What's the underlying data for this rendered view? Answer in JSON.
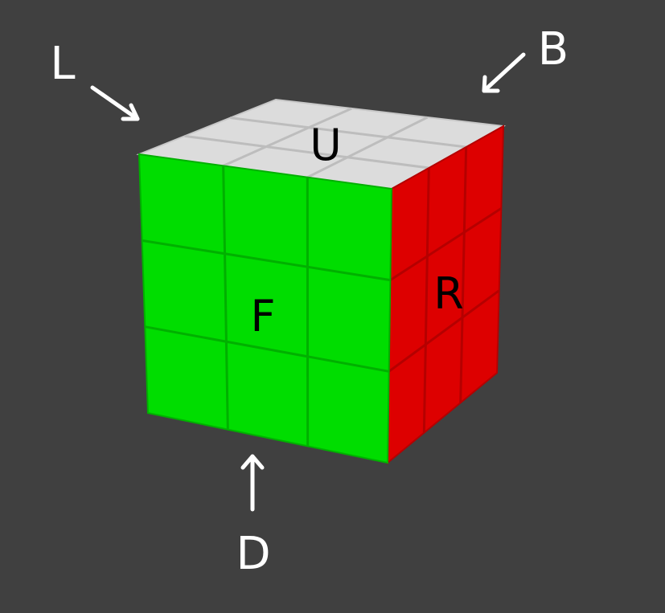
{
  "colors": {
    "background": "#404040",
    "front": "#00dd00",
    "front_grid": "#00b000",
    "right": "#dd0000",
    "right_grid": "#b50000",
    "up": "#dcdcdc",
    "up_grid": "#bdbdbd",
    "label_dark": "#000000",
    "label_light": "#ffffff"
  },
  "faces": {
    "front": "F",
    "right": "R",
    "up": "U"
  },
  "outside_labels": {
    "left": "L",
    "back": "B",
    "down": "D"
  }
}
